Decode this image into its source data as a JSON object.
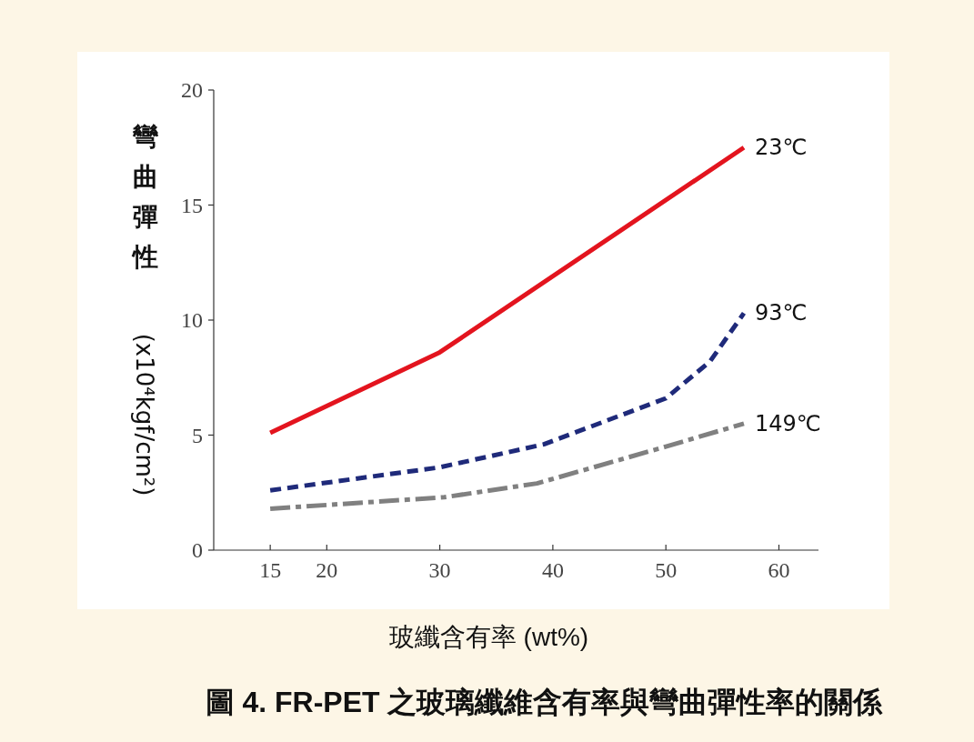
{
  "chart_data": {
    "type": "line",
    "xlabel": "玻纖含有率 (wt%)",
    "ylabel": "彎曲彈性 (x10⁴kgf/cm²)",
    "xlim": [
      10,
      63.5
    ],
    "xticks": [
      15,
      20,
      30,
      40,
      50,
      60
    ],
    "ylim": [
      0,
      20
    ],
    "yticks": [
      0,
      5,
      10,
      15,
      20
    ],
    "grid": false,
    "marker": "none",
    "series": [
      {
        "name": "23℃",
        "color": "#e3141e",
        "line_style": "solid",
        "x": [
          15,
          30,
          56.9
        ],
        "values": [
          5.1,
          8.6,
          17.5
        ]
      },
      {
        "name": "93℃",
        "color": "#1f2a7a",
        "line_style": "dashed",
        "x": [
          15,
          30,
          39.2,
          50,
          53.9,
          56.9
        ],
        "values": [
          2.6,
          3.6,
          4.6,
          6.6,
          8.2,
          10.3
        ]
      },
      {
        "name": "149℃",
        "color": "#808080",
        "line_style": "dashdot",
        "x": [
          15,
          30.4,
          38.6,
          50,
          56.9
        ],
        "values": [
          1.8,
          2.3,
          2.9,
          4.5,
          5.5
        ]
      }
    ],
    "annotations": [
      "圖 4. FR-PET 之玻璃纖維含有率與彎曲彈性率的關係"
    ]
  }
}
